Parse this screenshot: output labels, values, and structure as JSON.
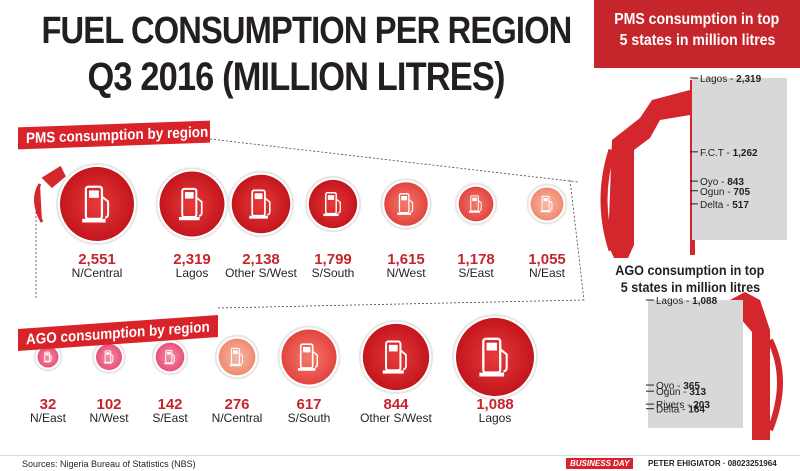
{
  "header": {
    "title_line1": "FUEL CONSUMPTION PER REGION",
    "title_line2": "Q3 2016 (MILLION LITRES)"
  },
  "pms_section": {
    "label": "PMS consumption by region"
  },
  "ago_section": {
    "label": "AGO consumption by region"
  },
  "side_panel": {
    "pms_title_line1": "PMS consumption in top",
    "pms_title_line2": "5 states in million litres",
    "ago_title_line1": "AGO consumption in top",
    "ago_title_line2": "5 states in million litres"
  },
  "footer": {
    "source": "Sources: Nigeria Bureau of Statistics (NBS)",
    "brand": "BUSINESS DAY",
    "credit": "PETER EHIGIATOR · 08023251964"
  },
  "colors": {
    "red_dark": "#d8232a",
    "red_mid": "#ee5a50",
    "pink": "#f06f87",
    "salmon": "#f5a08a",
    "gray": "#d9d8d8"
  },
  "icons": [
    "fuel-pump-icon",
    "fuel-nozzle-icon"
  ],
  "chart_data": [
    {
      "type": "bubble",
      "title": "PMS consumption by region",
      "categories": [
        "N/Central",
        "Lagos",
        "Other S/West",
        "S/South",
        "N/West",
        "S/East",
        "N/East"
      ],
      "values": [
        2551,
        2319,
        2138,
        1799,
        1615,
        1178,
        1055
      ],
      "value_labels": [
        "2,551",
        "2,319",
        "2,138",
        "1,799",
        "1,615",
        "1,178",
        "1,055"
      ]
    },
    {
      "type": "bubble",
      "title": "AGO consumption by region",
      "categories": [
        "N/East",
        "N/West",
        "S/East",
        "N/Central",
        "S/South",
        "Other S/West",
        "Lagos"
      ],
      "values": [
        32,
        102,
        142,
        276,
        617,
        844,
        1088
      ],
      "value_labels": [
        "32",
        "102",
        "142",
        "276",
        "617",
        "844",
        "1,088"
      ]
    },
    {
      "type": "bar",
      "title": "PMS consumption in top 5 states in million litres",
      "categories": [
        "Lagos",
        "F.C.T",
        "Oyo",
        "Ogun",
        "Delta"
      ],
      "values": [
        2319,
        1262,
        843,
        705,
        517
      ],
      "value_labels": [
        "2,319",
        "1,262",
        "843",
        "705",
        "517"
      ]
    },
    {
      "type": "bar",
      "title": "AGO consumption in top 5 states in million litres",
      "categories": [
        "Lagos",
        "Oyo",
        "Ogun",
        "Rivers",
        "Delta"
      ],
      "values": [
        1088,
        365,
        313,
        203,
        164
      ],
      "value_labels": [
        "1,088",
        "365",
        "313",
        "203",
        "164"
      ]
    }
  ]
}
